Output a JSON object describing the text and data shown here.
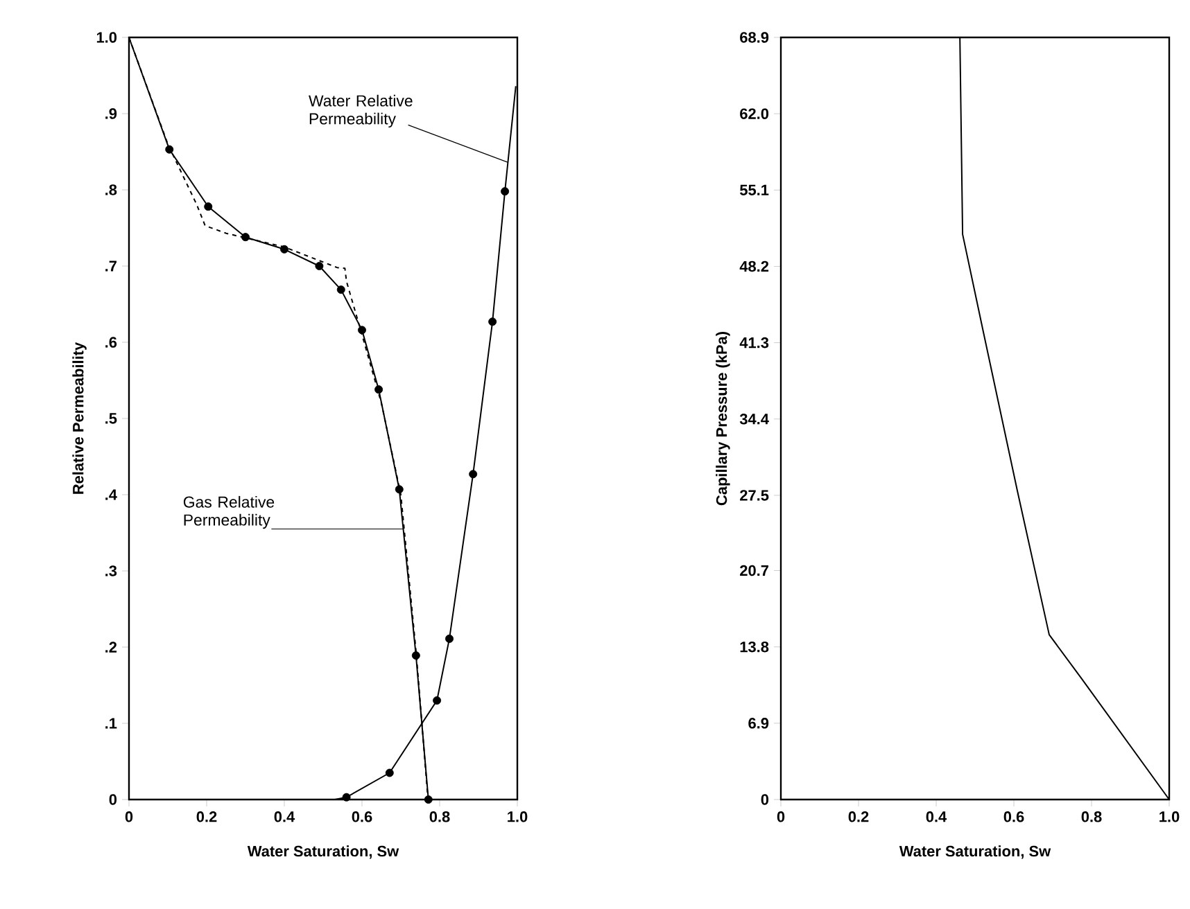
{
  "chart_data": [
    {
      "type": "line",
      "xlabel": "Water Saturation, Sw",
      "ylabel": "Relative Permeability",
      "xlim": [
        0,
        1
      ],
      "ylim": [
        0,
        1
      ],
      "xticks": [
        0,
        0.2,
        0.4,
        0.6,
        0.8,
        {
          "value": 1,
          "label": "1.0"
        }
      ],
      "yticks": [
        0,
        {
          "value": 0.1,
          "label": ".1"
        },
        {
          "value": 0.2,
          "label": ".2"
        },
        {
          "value": 0.3,
          "label": ".3"
        },
        {
          "value": 0.4,
          "label": ".4"
        },
        {
          "value": 0.5,
          "label": ".5"
        },
        {
          "value": 0.6,
          "label": ".6"
        },
        {
          "value": 0.7,
          "label": ".7"
        },
        {
          "value": 0.8,
          "label": ".8"
        },
        {
          "value": 0.9,
          "label": ".9"
        },
        {
          "value": 1,
          "label": "1.0"
        }
      ],
      "series": [
        {
          "type": "line",
          "color": "#000000",
          "marker": "none",
          "line_style": "solid",
          "x": [
            0,
            0.104,
            0.204,
            0.3,
            0.4,
            0.49,
            0.546,
            0.6,
            0.643,
            0.696,
            0.739,
            0.771
          ],
          "values": [
            1,
            0.853,
            0.778,
            0.738,
            0.722,
            0.7,
            0.669,
            0.616,
            0.538,
            0.407,
            0.189,
            0
          ]
        },
        {
          "type": "line",
          "color": "#000000",
          "marker": "none",
          "line_style": "dashed",
          "x": [
            0,
            0.1,
            0.175,
            0.196,
            0.25,
            0.4,
            0.536,
            0.556,
            0.56,
            0.6,
            0.65,
            0.7,
            0.74,
            0.77
          ],
          "values": [
            1,
            0.86,
            0.78,
            0.753,
            0.743,
            0.725,
            0.698,
            0.697,
            0.68,
            0.61,
            0.52,
            0.4,
            0.19,
            0
          ]
        },
        {
          "type": "scatter",
          "color": "#000000",
          "marker": "circle",
          "x": [
            0.104,
            0.204,
            0.3,
            0.4,
            0.49,
            0.546,
            0.6,
            0.643,
            0.696,
            0.739,
            0.771
          ],
          "values": [
            0.853,
            0.778,
            0.738,
            0.722,
            0.7,
            0.669,
            0.616,
            0.538,
            0.407,
            0.189,
            0
          ]
        },
        {
          "type": "line",
          "color": "#000000",
          "marker": "none",
          "line_style": "solid",
          "x": [
            0.53,
            0.56,
            0.671,
            0.793,
            0.825,
            0.886,
            0.936,
            0.968,
            0.996
          ],
          "values": [
            0,
            0.003,
            0.035,
            0.13,
            0.211,
            0.427,
            0.627,
            0.798,
            0.936
          ]
        },
        {
          "type": "scatter",
          "color": "#000000",
          "marker": "circle",
          "x": [
            0.56,
            0.671,
            0.793,
            0.825,
            0.886,
            0.936,
            0.968
          ],
          "values": [
            0.003,
            0.035,
            0.13,
            0.211,
            0.427,
            0.627,
            0.798
          ]
        }
      ],
      "annotations": [
        {
          "text": "Water Relative Permeability",
          "x": 0.976,
          "y": 0.836
        },
        {
          "text": "Gas Relative Permeability",
          "x": 0.706,
          "y": 0.355
        }
      ]
    },
    {
      "type": "line",
      "xlabel": "Water Saturation, Sw",
      "ylabel": "Capillary Pressure (kPa)",
      "xlim": [
        0,
        1
      ],
      "ylim": [
        0,
        68.9
      ],
      "xticks": [
        0,
        0.2,
        0.4,
        0.6,
        0.8,
        {
          "value": 1,
          "label": "1.0"
        }
      ],
      "yticks": [
        0,
        6.9,
        13.8,
        20.7,
        27.5,
        34.4,
        41.3,
        48.2,
        55.1,
        {
          "value": 62,
          "label": "62.0"
        },
        68.9
      ],
      "series": [
        {
          "type": "line",
          "color": "#000000",
          "marker": "none",
          "line_style": "solid",
          "x": [
            0.461,
            0.468,
            0.52,
            0.609,
            0.691,
            0.773,
            1
          ],
          "values": [
            68.9,
            51.1,
            42.5,
            27.9,
            14.9,
            11.0,
            0
          ]
        }
      ]
    }
  ]
}
